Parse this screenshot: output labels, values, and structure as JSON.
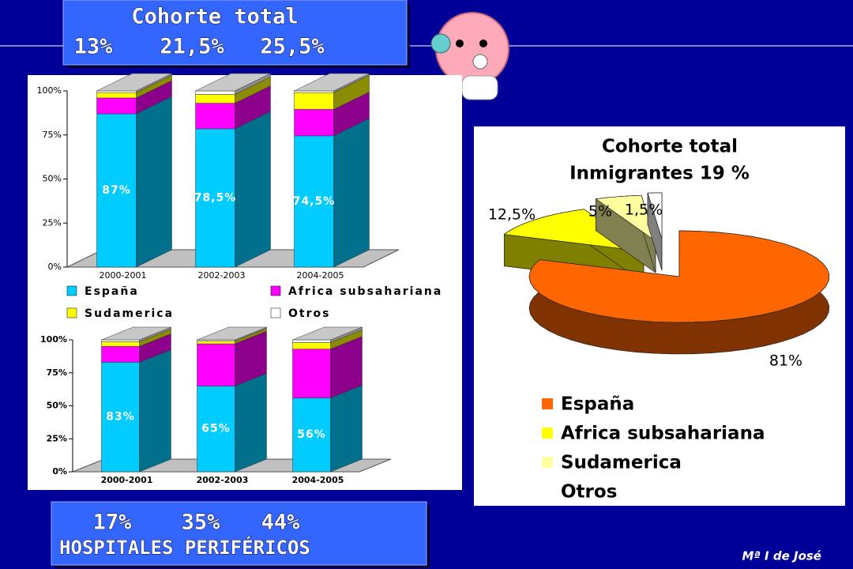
{
  "header": {
    "title": "Cohorte total",
    "values": [
      "13%",
      "21,5%",
      "25,5%"
    ]
  },
  "footer": {
    "values": [
      "17%",
      "35%",
      "44%"
    ],
    "label": "HOSPITALES PERIFÉRICOS"
  },
  "author": "Mª  I  de José",
  "chart_data": [
    {
      "type": "bar",
      "stacked": true,
      "legend": true,
      "categories": [
        "2000-2001",
        "2002-2003",
        "2004-2005"
      ],
      "series": [
        {
          "name": "España",
          "color": "#00ccff",
          "values": [
            87,
            78.5,
            74.5
          ],
          "value_labels": [
            "87%",
            "78,5%",
            "74,5%"
          ]
        },
        {
          "name": "Africa subsahariana",
          "color": "#ff00ff",
          "values": [
            9,
            14.5,
            15
          ]
        },
        {
          "name": "Sudamerica",
          "color": "#ffff00",
          "values": [
            3,
            5,
            9.5
          ]
        },
        {
          "name": "Otros",
          "color": "#ffffff",
          "values": [
            1,
            2,
            1
          ]
        }
      ],
      "ylim": [
        0,
        100
      ],
      "yticks": [
        {
          "value": 0,
          "label": "0%"
        },
        {
          "value": 25,
          "label": "25%"
        },
        {
          "value": 50,
          "label": "50%"
        },
        {
          "value": 75,
          "label": "75%"
        },
        {
          "value": 100,
          "label": "100%"
        }
      ]
    },
    {
      "type": "bar",
      "stacked": true,
      "legend": false,
      "categories": [
        "2000-2001",
        "2002-2003",
        "2004-2005"
      ],
      "series": [
        {
          "color": "#00ccff",
          "values": [
            83,
            65,
            56
          ],
          "value_labels": [
            "83%",
            "65%",
            "56%"
          ]
        },
        {
          "color": "#ff00ff",
          "values": [
            12,
            32,
            37
          ]
        },
        {
          "color": "#ffff00",
          "values": [
            3.5,
            2,
            5
          ]
        },
        {
          "color": "#ffffff",
          "values": [
            1.5,
            1,
            2
          ]
        }
      ],
      "ylim": [
        0,
        100
      ],
      "yticks": [
        {
          "value": 0,
          "label": "0%"
        },
        {
          "value": 25,
          "label": "25%"
        },
        {
          "value": 50,
          "label": "50%"
        },
        {
          "value": 75,
          "label": "75%"
        },
        {
          "value": 100,
          "label": "100%"
        }
      ]
    },
    {
      "type": "pie",
      "title": "Cohorte total",
      "subtitle": "Inmigrantes 19 %",
      "categories": [
        "España",
        "Africa subsahariana",
        "Sudamerica",
        "Otros"
      ],
      "values": [
        81,
        12.5,
        5,
        1.5
      ],
      "value_labels": [
        "81%",
        "12,5%",
        "5%",
        "1,5%"
      ],
      "colors": [
        "#ff6600",
        "#ffff00",
        "#ffffa0",
        "#ffffff"
      ]
    }
  ]
}
